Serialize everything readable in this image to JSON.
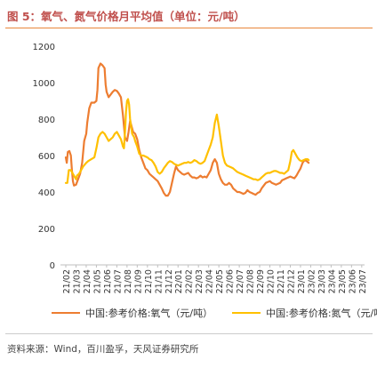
{
  "title": "图 5：氧气、氮气价格月平均值（单位：元/吨）",
  "source": "资料来源：Wind，百川盈孚，天风证券研究所",
  "colors": {
    "oxygen": "#ed7d31",
    "nitrogen": "#ffc000",
    "title": "#c0504d",
    "rule": "#e8863a"
  },
  "chart_data": {
    "type": "line",
    "ylim": [
      0,
      1200
    ],
    "yticks": [
      "0",
      "200",
      "400",
      "600",
      "800",
      "1000",
      "1200"
    ],
    "x_tick_labels": [
      "21/02",
      "21/03",
      "21/04",
      "21/05",
      "21/06",
      "21/07",
      "21/08",
      "21/09",
      "21/10",
      "21/11",
      "21/12",
      "22/01",
      "22/02",
      "22/03",
      "22/04",
      "22/05",
      "22/06",
      "22/07",
      "22/08",
      "22/09",
      "22/10",
      "22/11",
      "22/12",
      "23/01",
      "23/02",
      "23/03",
      "23/04",
      "23/05",
      "23/06",
      "23/07"
    ],
    "x_start": "21/02",
    "x_end": "23/07",
    "series": [
      {
        "name": "中国:参考价格:氧气（元/吨）",
        "color": "#ed7d31",
        "points": [
          [
            0.0,
            590
          ],
          [
            0.1,
            560
          ],
          [
            0.2,
            620
          ],
          [
            0.35,
            625
          ],
          [
            0.5,
            600
          ],
          [
            0.6,
            520
          ],
          [
            0.7,
            460
          ],
          [
            0.8,
            435
          ],
          [
            1.0,
            440
          ],
          [
            1.2,
            470
          ],
          [
            1.4,
            500
          ],
          [
            1.6,
            560
          ],
          [
            1.8,
            680
          ],
          [
            2.0,
            720
          ],
          [
            2.1,
            780
          ],
          [
            2.3,
            860
          ],
          [
            2.5,
            890
          ],
          [
            2.8,
            890
          ],
          [
            3.0,
            900
          ],
          [
            3.1,
            960
          ],
          [
            3.2,
            1080
          ],
          [
            3.4,
            1105
          ],
          [
            3.6,
            1095
          ],
          [
            3.8,
            1080
          ],
          [
            3.9,
            990
          ],
          [
            4.0,
            950
          ],
          [
            4.2,
            920
          ],
          [
            4.4,
            935
          ],
          [
            4.6,
            950
          ],
          [
            4.8,
            960
          ],
          [
            5.0,
            955
          ],
          [
            5.2,
            940
          ],
          [
            5.4,
            920
          ],
          [
            5.6,
            820
          ],
          [
            5.8,
            700
          ],
          [
            6.0,
            680
          ],
          [
            6.15,
            730
          ],
          [
            6.3,
            790
          ],
          [
            6.45,
            760
          ],
          [
            6.6,
            730
          ],
          [
            6.8,
            720
          ],
          [
            7.0,
            690
          ],
          [
            7.2,
            630
          ],
          [
            7.4,
            590
          ],
          [
            7.6,
            560
          ],
          [
            7.8,
            530
          ],
          [
            8.0,
            520
          ],
          [
            8.2,
            500
          ],
          [
            8.4,
            490
          ],
          [
            8.6,
            480
          ],
          [
            8.8,
            470
          ],
          [
            9.0,
            460
          ],
          [
            9.2,
            440
          ],
          [
            9.4,
            420
          ],
          [
            9.6,
            395
          ],
          [
            9.8,
            380
          ],
          [
            10.0,
            380
          ],
          [
            10.2,
            400
          ],
          [
            10.4,
            450
          ],
          [
            10.6,
            500
          ],
          [
            10.8,
            540
          ],
          [
            11.0,
            520
          ],
          [
            11.2,
            510
          ],
          [
            11.4,
            500
          ],
          [
            11.6,
            495
          ],
          [
            11.8,
            500
          ],
          [
            12.0,
            505
          ],
          [
            12.2,
            490
          ],
          [
            12.4,
            480
          ],
          [
            12.6,
            480
          ],
          [
            12.8,
            475
          ],
          [
            13.0,
            480
          ],
          [
            13.2,
            490
          ],
          [
            13.4,
            480
          ],
          [
            13.6,
            485
          ],
          [
            13.8,
            480
          ],
          [
            14.0,
            500
          ],
          [
            14.2,
            520
          ],
          [
            14.4,
            560
          ],
          [
            14.6,
            580
          ],
          [
            14.8,
            560
          ],
          [
            15.0,
            500
          ],
          [
            15.2,
            470
          ],
          [
            15.4,
            450
          ],
          [
            15.6,
            440
          ],
          [
            15.8,
            440
          ],
          [
            16.0,
            450
          ],
          [
            16.2,
            440
          ],
          [
            16.4,
            420
          ],
          [
            16.6,
            410
          ],
          [
            16.8,
            400
          ],
          [
            17.0,
            400
          ],
          [
            17.2,
            395
          ],
          [
            17.4,
            390
          ],
          [
            17.6,
            395
          ],
          [
            17.8,
            410
          ],
          [
            18.0,
            400
          ],
          [
            18.2,
            395
          ],
          [
            18.4,
            390
          ],
          [
            18.6,
            385
          ],
          [
            18.8,
            395
          ],
          [
            19.0,
            400
          ],
          [
            19.2,
            420
          ],
          [
            19.4,
            435
          ],
          [
            19.6,
            450
          ],
          [
            19.8,
            455
          ],
          [
            20.0,
            460
          ],
          [
            20.2,
            450
          ],
          [
            20.4,
            445
          ],
          [
            20.6,
            440
          ],
          [
            20.8,
            445
          ],
          [
            21.0,
            450
          ],
          [
            21.2,
            465
          ],
          [
            21.4,
            470
          ],
          [
            21.6,
            475
          ],
          [
            21.8,
            480
          ],
          [
            22.0,
            485
          ],
          [
            22.2,
            480
          ],
          [
            22.4,
            475
          ],
          [
            22.6,
            490
          ],
          [
            22.8,
            510
          ],
          [
            23.0,
            530
          ],
          [
            23.2,
            560
          ],
          [
            23.4,
            575
          ],
          [
            23.6,
            570
          ],
          [
            23.8,
            560
          ]
        ]
      },
      {
        "name": "中国:参考价格:氮气（元/吨）",
        "color": "#ffc000",
        "points": [
          [
            0.0,
            450
          ],
          [
            0.15,
            450
          ],
          [
            0.3,
            520
          ],
          [
            0.5,
            520
          ],
          [
            0.7,
            500
          ],
          [
            0.9,
            480
          ],
          [
            1.0,
            470
          ],
          [
            1.1,
            490
          ],
          [
            1.3,
            500
          ],
          [
            1.5,
            520
          ],
          [
            1.7,
            540
          ],
          [
            2.0,
            560
          ],
          [
            2.2,
            570
          ],
          [
            2.5,
            580
          ],
          [
            2.8,
            590
          ],
          [
            3.0,
            640
          ],
          [
            3.2,
            700
          ],
          [
            3.4,
            720
          ],
          [
            3.6,
            730
          ],
          [
            3.8,
            720
          ],
          [
            4.0,
            700
          ],
          [
            4.2,
            680
          ],
          [
            4.4,
            690
          ],
          [
            4.6,
            700
          ],
          [
            4.8,
            720
          ],
          [
            5.0,
            730
          ],
          [
            5.2,
            710
          ],
          [
            5.4,
            690
          ],
          [
            5.6,
            650
          ],
          [
            5.7,
            640
          ],
          [
            5.8,
            730
          ],
          [
            5.9,
            840
          ],
          [
            6.0,
            900
          ],
          [
            6.1,
            910
          ],
          [
            6.2,
            880
          ],
          [
            6.3,
            800
          ],
          [
            6.5,
            720
          ],
          [
            6.7,
            700
          ],
          [
            6.8,
            680
          ],
          [
            7.0,
            650
          ],
          [
            7.2,
            610
          ],
          [
            7.4,
            600
          ],
          [
            7.6,
            600
          ],
          [
            7.8,
            595
          ],
          [
            8.0,
            590
          ],
          [
            8.2,
            580
          ],
          [
            8.4,
            575
          ],
          [
            8.6,
            560
          ],
          [
            8.8,
            540
          ],
          [
            9.0,
            510
          ],
          [
            9.2,
            500
          ],
          [
            9.4,
            510
          ],
          [
            9.6,
            530
          ],
          [
            9.8,
            545
          ],
          [
            10.0,
            560
          ],
          [
            10.2,
            570
          ],
          [
            10.4,
            565
          ],
          [
            10.6,
            555
          ],
          [
            10.8,
            550
          ],
          [
            11.0,
            545
          ],
          [
            11.2,
            550
          ],
          [
            11.4,
            555
          ],
          [
            11.6,
            560
          ],
          [
            11.8,
            560
          ],
          [
            12.0,
            565
          ],
          [
            12.2,
            560
          ],
          [
            12.4,
            565
          ],
          [
            12.6,
            575
          ],
          [
            12.8,
            570
          ],
          [
            13.0,
            560
          ],
          [
            13.2,
            555
          ],
          [
            13.4,
            560
          ],
          [
            13.6,
            570
          ],
          [
            13.8,
            600
          ],
          [
            14.0,
            630
          ],
          [
            14.2,
            660
          ],
          [
            14.4,
            700
          ],
          [
            14.6,
            780
          ],
          [
            14.8,
            825
          ],
          [
            15.0,
            760
          ],
          [
            15.2,
            680
          ],
          [
            15.4,
            600
          ],
          [
            15.6,
            560
          ],
          [
            15.8,
            545
          ],
          [
            16.0,
            540
          ],
          [
            16.2,
            535
          ],
          [
            16.4,
            530
          ],
          [
            16.6,
            520
          ],
          [
            16.8,
            510
          ],
          [
            17.0,
            505
          ],
          [
            17.2,
            500
          ],
          [
            17.4,
            495
          ],
          [
            17.6,
            490
          ],
          [
            17.8,
            485
          ],
          [
            18.0,
            480
          ],
          [
            18.2,
            475
          ],
          [
            18.4,
            470
          ],
          [
            18.6,
            470
          ],
          [
            18.8,
            465
          ],
          [
            19.0,
            470
          ],
          [
            19.2,
            480
          ],
          [
            19.4,
            490
          ],
          [
            19.6,
            500
          ],
          [
            19.8,
            505
          ],
          [
            20.0,
            505
          ],
          [
            20.2,
            510
          ],
          [
            20.4,
            515
          ],
          [
            20.6,
            515
          ],
          [
            20.8,
            510
          ],
          [
            21.0,
            505
          ],
          [
            21.2,
            505
          ],
          [
            21.4,
            500
          ],
          [
            21.6,
            510
          ],
          [
            21.8,
            520
          ],
          [
            22.0,
            570
          ],
          [
            22.15,
            620
          ],
          [
            22.3,
            630
          ],
          [
            22.5,
            610
          ],
          [
            22.7,
            590
          ],
          [
            22.9,
            575
          ],
          [
            23.1,
            570
          ],
          [
            23.3,
            575
          ],
          [
            23.5,
            580
          ],
          [
            23.7,
            580
          ],
          [
            23.8,
            575
          ]
        ]
      }
    ]
  }
}
